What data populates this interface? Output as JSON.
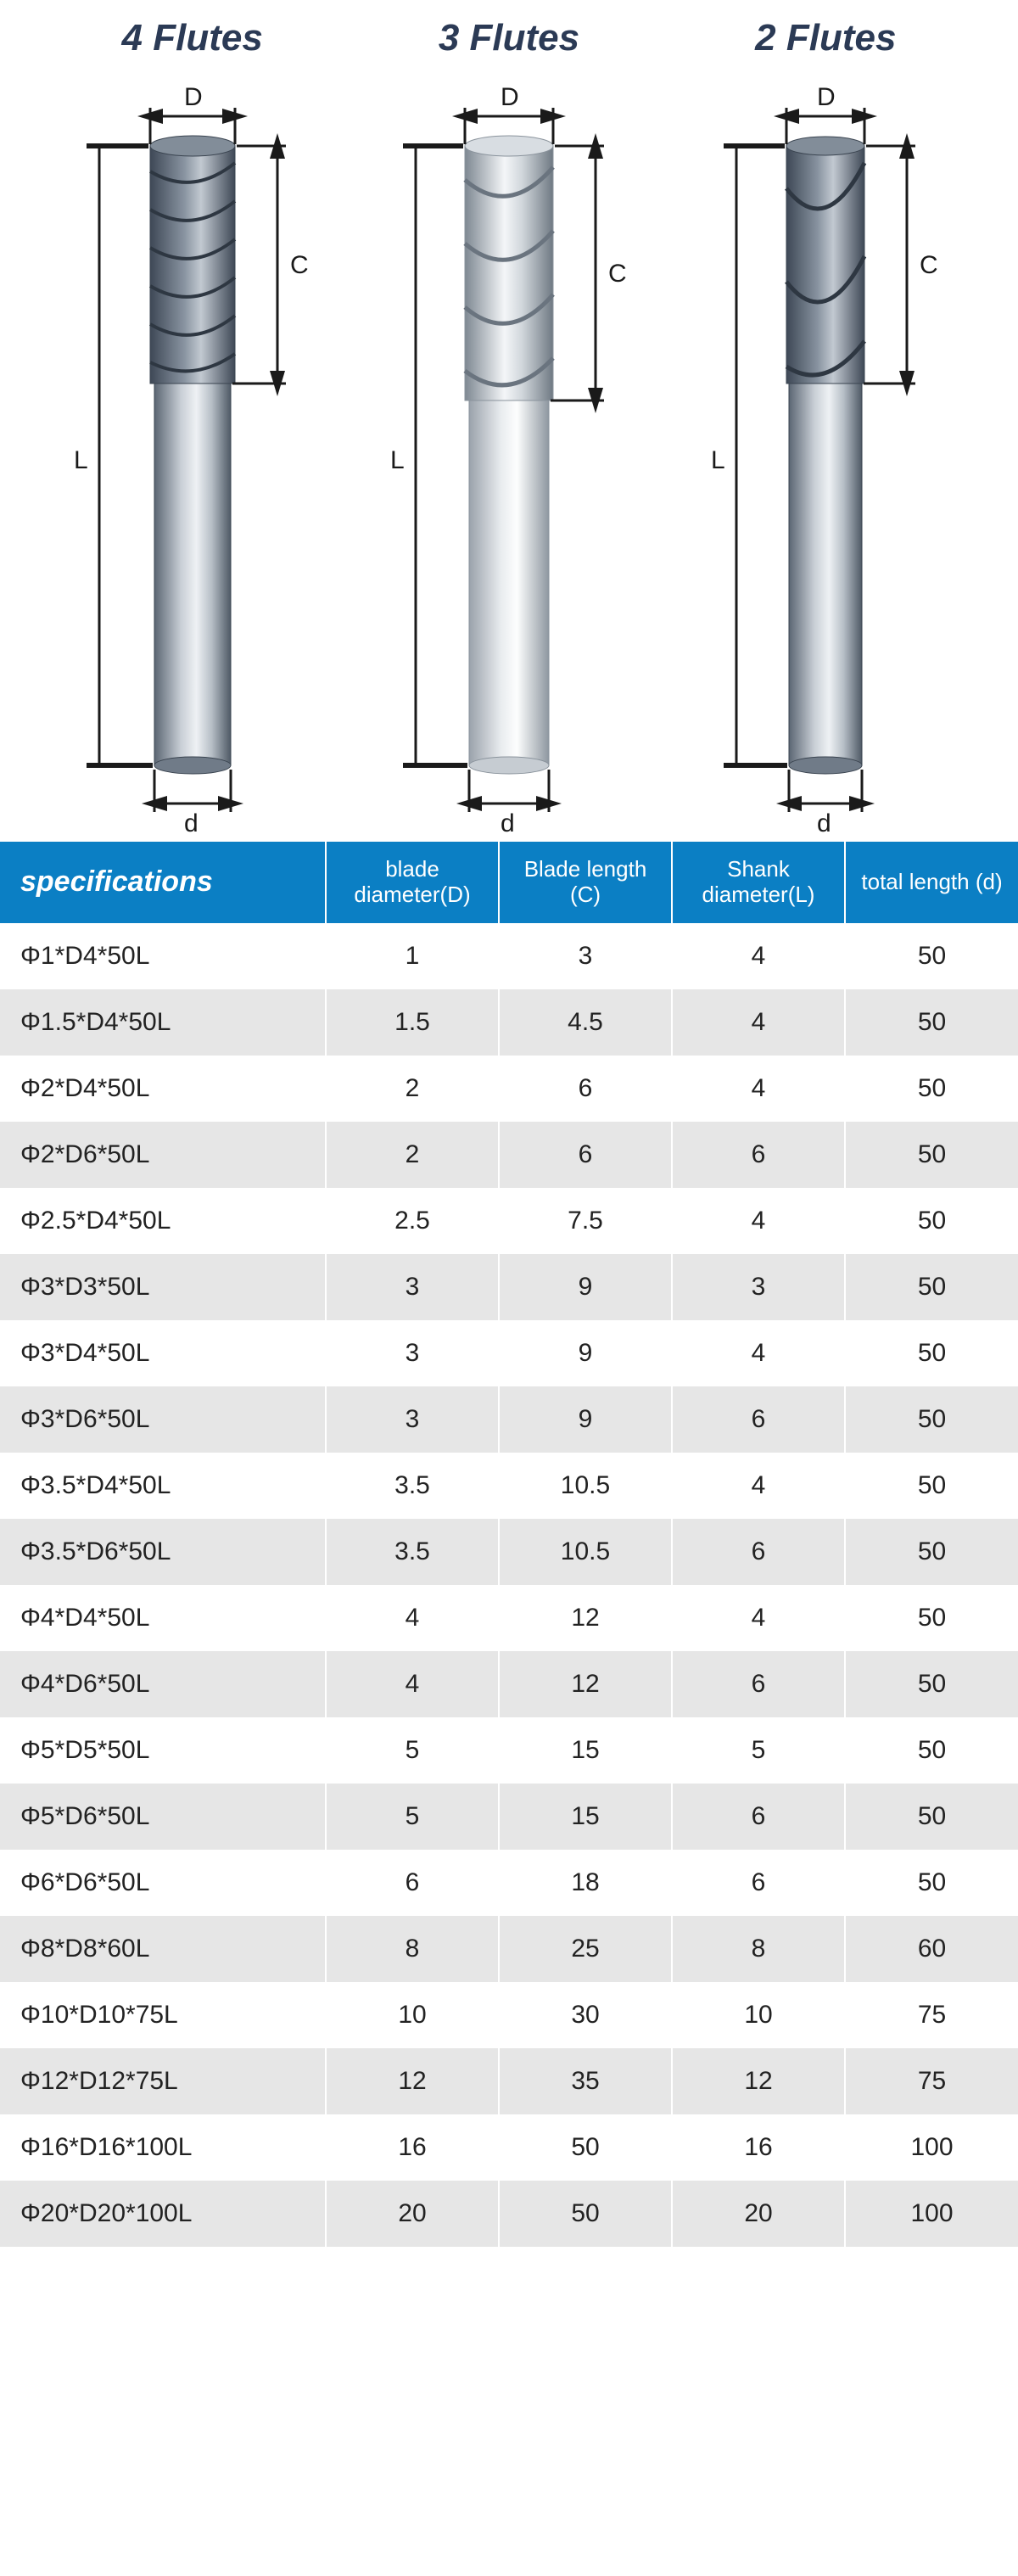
{
  "diagrams": {
    "titles": [
      "4 Flutes",
      "3 Flutes",
      "2 Flutes"
    ],
    "labels": {
      "D": "D",
      "C": "C",
      "L": "L",
      "d": "d"
    },
    "tool_colors": {
      "flute4_body": "#6e7a87",
      "flute4_shank": "#8e98a3",
      "flute3_body": "#d5d9de",
      "flute3_shank": "#bfc6cc",
      "flute2_body": "#6e7a87",
      "flute2_shank": "#8e98a3",
      "highlight": "#f2f4f6",
      "edge": "#3a4450"
    }
  },
  "table": {
    "header_bg": "#0b7fc4",
    "header_fg": "#ffffff",
    "row_even_bg": "#e6e6e6",
    "row_odd_bg": "#ffffff",
    "columns": [
      "specifications",
      "blade diameter(D)",
      "Blade length (C)",
      "Shank diameter(L)",
      "total length (d)"
    ],
    "rows": [
      [
        "Φ1*D4*50L",
        "1",
        "3",
        "4",
        "50"
      ],
      [
        "Φ1.5*D4*50L",
        "1.5",
        "4.5",
        "4",
        "50"
      ],
      [
        "Φ2*D4*50L",
        "2",
        "6",
        "4",
        "50"
      ],
      [
        "Φ2*D6*50L",
        "2",
        "6",
        "6",
        "50"
      ],
      [
        "Φ2.5*D4*50L",
        "2.5",
        "7.5",
        "4",
        "50"
      ],
      [
        "Φ3*D3*50L",
        "3",
        "9",
        "3",
        "50"
      ],
      [
        "Φ3*D4*50L",
        "3",
        "9",
        "4",
        "50"
      ],
      [
        "Φ3*D6*50L",
        "3",
        "9",
        "6",
        "50"
      ],
      [
        "Φ3.5*D4*50L",
        "3.5",
        "10.5",
        "4",
        "50"
      ],
      [
        "Φ3.5*D6*50L",
        "3.5",
        "10.5",
        "6",
        "50"
      ],
      [
        "Φ4*D4*50L",
        "4",
        "12",
        "4",
        "50"
      ],
      [
        "Φ4*D6*50L",
        "4",
        "12",
        "6",
        "50"
      ],
      [
        "Φ5*D5*50L",
        "5",
        "15",
        "5",
        "50"
      ],
      [
        "Φ5*D6*50L",
        "5",
        "15",
        "6",
        "50"
      ],
      [
        "Φ6*D6*50L",
        "6",
        "18",
        "6",
        "50"
      ],
      [
        "Φ8*D8*60L",
        "8",
        "25",
        "8",
        "60"
      ],
      [
        "Φ10*D10*75L",
        "10",
        "30",
        "10",
        "75"
      ],
      [
        "Φ12*D12*75L",
        "12",
        "35",
        "12",
        "75"
      ],
      [
        "Φ16*D16*100L",
        "16",
        "50",
        "16",
        "100"
      ],
      [
        "Φ20*D20*100L",
        "20",
        "50",
        "20",
        "100"
      ]
    ]
  }
}
